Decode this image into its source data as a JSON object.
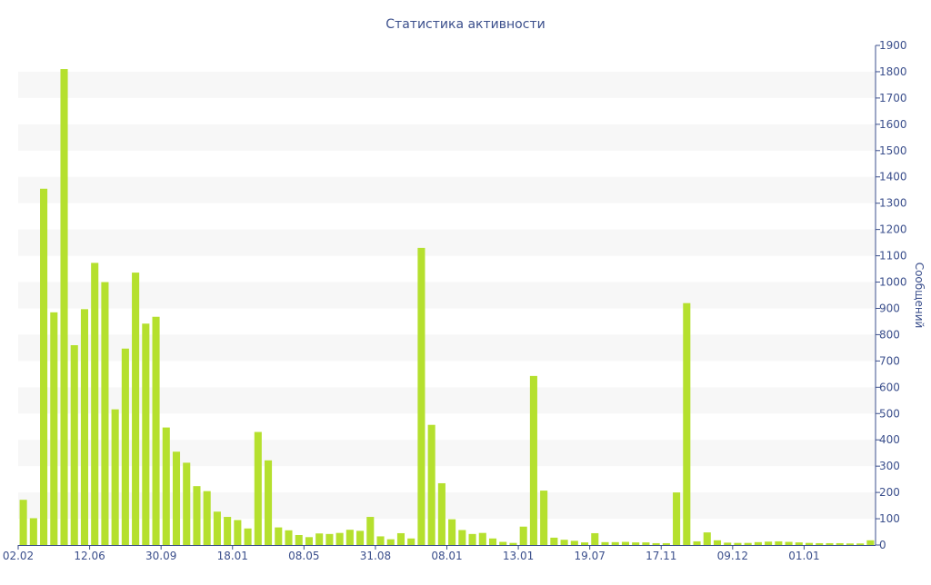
{
  "chart_data": {
    "type": "bar",
    "title": "Статистика активности",
    "ylabel": "Сообщений",
    "xlabel": "",
    "ylim": [
      0,
      1900
    ],
    "y_ticks": [
      0,
      100,
      200,
      300,
      400,
      500,
      600,
      700,
      800,
      900,
      1000,
      1100,
      1200,
      1300,
      1400,
      1500,
      1600,
      1700,
      1800,
      1900
    ],
    "y_axis_position": "right",
    "grid": "alternating horizontal bands",
    "x_tick_labels": [
      {
        "label": "02.02",
        "index": 0
      },
      {
        "label": "12.06",
        "index": 7
      },
      {
        "label": "30.09",
        "index": 14
      },
      {
        "label": "18.01",
        "index": 21
      },
      {
        "label": "08.05",
        "index": 28
      },
      {
        "label": "31.08",
        "index": 35
      },
      {
        "label": "08.01",
        "index": 42
      },
      {
        "label": "13.01",
        "index": 49
      },
      {
        "label": "19.07",
        "index": 56
      },
      {
        "label": "17.11",
        "index": 63
      },
      {
        "label": "09.12",
        "index": 70
      },
      {
        "label": "01.01",
        "index": 77
      }
    ],
    "values": [
      172,
      102,
      1355,
      885,
      1810,
      760,
      897,
      1073,
      1000,
      516,
      747,
      1036,
      842,
      868,
      447,
      355,
      313,
      224,
      205,
      127,
      107,
      95,
      63,
      430,
      322,
      67,
      56,
      38,
      30,
      44,
      42,
      46,
      58,
      54,
      107,
      33,
      22,
      45,
      25,
      1130,
      457,
      235,
      98,
      57,
      42,
      46,
      25,
      12,
      8,
      70,
      643,
      207,
      28,
      20,
      16,
      10,
      45,
      11,
      11,
      12,
      10,
      10,
      7,
      7,
      200,
      920,
      14,
      48,
      18,
      9,
      8,
      8,
      11,
      13,
      14,
      12,
      10,
      8,
      7,
      7,
      7,
      6,
      6,
      18
    ],
    "colors": {
      "bar": "#b5e02e",
      "text": "#3b4f8c",
      "band": "#f7f7f7",
      "axis": "#3b4f8c"
    }
  }
}
